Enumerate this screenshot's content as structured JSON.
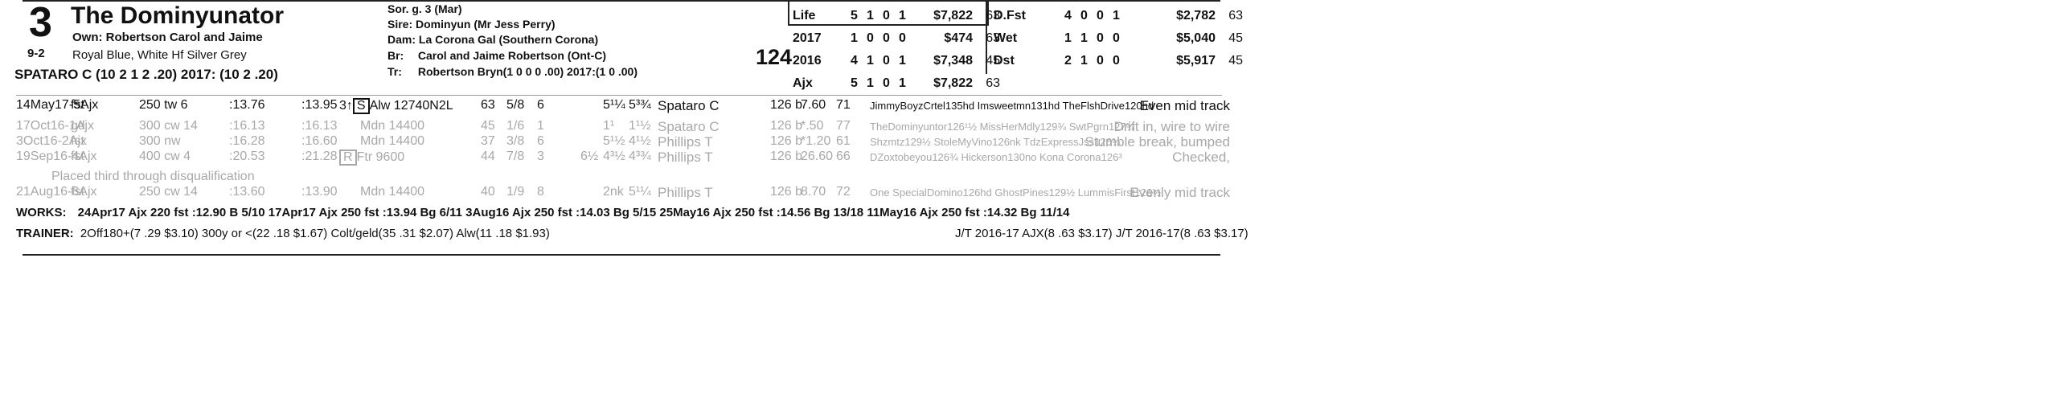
{
  "header": {
    "program_number": "3",
    "horse_name": "The Dominyunator",
    "owner": "Own: Robertson Carol and Jaime",
    "odds": "9-2",
    "silks": "Royal Blue, White Hf Silver Grey",
    "jockey": "SPATARO C (10 2 1 2 .20) 2017: (10 2 .20)"
  },
  "breeding": {
    "sex_age": "Sor. g. 3 (Mar)",
    "sire_label": "Sire:",
    "sire": "Dominyun (Mr Jess Perry)",
    "dam_label": "Dam:",
    "dam": "La Corona Gal (Southern Corona)",
    "breeder_label": "Br:",
    "breeder": "Carol and Jaime Robertson (Ont-C)",
    "trainer_label": "Tr:",
    "trainer": "Robertson Bryn(1 0 0 0 .00)  2017:(1 0 .00)"
  },
  "speed_figure": "124",
  "record_left": [
    {
      "label": "Life",
      "st": "5",
      "w": "1",
      "p": "0",
      "s": "1",
      "earn": "$7,822",
      "fig": "63"
    },
    {
      "label": "2017",
      "st": "1",
      "w": "0",
      "p": "0",
      "s": "0",
      "earn": "$474",
      "fig": "63"
    },
    {
      "label": "2016",
      "st": "4",
      "w": "1",
      "p": "0",
      "s": "1",
      "earn": "$7,348",
      "fig": "45"
    },
    {
      "label": "Ajx",
      "st": "5",
      "w": "1",
      "p": "0",
      "s": "1",
      "earn": "$7,822",
      "fig": "63"
    }
  ],
  "record_right": [
    {
      "label": "D.Fst",
      "st": "4",
      "w": "0",
      "p": "0",
      "s": "1",
      "earn": "$2,782",
      "fig": "63"
    },
    {
      "label": "Wet",
      "st": "1",
      "w": "1",
      "p": "0",
      "s": "0",
      "earn": "$5,040",
      "fig": "45"
    },
    {
      "label": "Dst",
      "st": "2",
      "w": "1",
      "p": "0",
      "s": "0",
      "earn": "$5,917",
      "fig": "45"
    }
  ],
  "races": [
    {
      "date": "14May17-5Ajx",
      "cond": "fst",
      "dist": "250 tw 6",
      "f1": ":13.76",
      "f2": ":13.95",
      "cls_pre": "3↑",
      "cls_box": "S",
      "cls": "Alw 12740N2L",
      "fig": "63",
      "pp": "5/8",
      "st": "6",
      "c1": "",
      "c2": "5¹¼",
      "fin": "5³¾",
      "jockey": "Spataro C",
      "wt": "126 b",
      "odds": "7.60",
      "sp": "71",
      "comp": "JimmyBoyzCrtel135hd Imsweetmn131hd TheFlshDrive120hd",
      "comment": "Even mid track",
      "gray": false
    },
    {
      "date": "17Oct16-1Ajx",
      "cond": "gd",
      "dist": "300 cw 14",
      "f1": ":16.13",
      "f2": ":16.13",
      "cls_pre": "",
      "cls_box": "",
      "cls": "Mdn 14400",
      "fig": "45",
      "pp": "1/6",
      "st": "1",
      "c1": "",
      "c2": "1¹",
      "fin": "1¹½",
      "jockey": "Spataro C",
      "wt": "126 b",
      "odds": "*.50",
      "sp": "77",
      "comp": "TheDominyuntor126¹½ MissHerMdly129¾ SwtPgrn127¾",
      "comment": "Drift in, wire to wire",
      "gray": true
    },
    {
      "date": "3Oct16-2Ajx",
      "cond": "fst",
      "dist": "300 nw",
      "f1": ":16.28",
      "f2": ":16.60",
      "cls_pre": "",
      "cls_box": "",
      "cls": "Mdn 14400",
      "fig": "37",
      "pp": "3/8",
      "st": "6",
      "c1": "",
      "c2": "5¹½",
      "fin": "4¹½",
      "jockey": "Phillips T",
      "wt": "126 b",
      "odds": "*1.20",
      "sp": "61",
      "comp": "Shzmtz129½ StoleMyVino126nk TdzExpressJss126¾",
      "comment": "Stumble break, bumped",
      "gray": true
    },
    {
      "date": "19Sep16-4Ajx",
      "cond": "fst",
      "dist": "400 cw 4",
      "f1": ":20.53",
      "f2": ":21.28",
      "cls_pre": "",
      "cls_box": "R",
      "cls": "Ftr 9600",
      "fig": "44",
      "pp": "7/8",
      "st": "3",
      "c1": "6½",
      "c2": "4³½",
      "fin": "4³¾",
      "jockey": "Phillips T",
      "wt": "126 b",
      "odds": "26.60",
      "sp": "66",
      "comp": "DZoxtobeyou126¾ Hickerson130no Kona Corona126³",
      "comment": "Checked,",
      "gray": true
    },
    {
      "date": "21Aug16-6Ajx",
      "cond": "fst",
      "dist": "250 cw 14",
      "f1": ":13.60",
      "f2": ":13.90",
      "cls_pre": "",
      "cls_box": "",
      "cls": "Mdn 14400",
      "fig": "40",
      "pp": "1/9",
      "st": "8",
      "c1": "",
      "c2": "2nk",
      "fin": "5¹¼",
      "jockey": "Phillips T",
      "wt": "126 b",
      "odds": "8.70",
      "sp": "72",
      "comp": "One SpecialDomino126hd GhostPines129½ LummisFirst126½",
      "comment": "Evenly mid track",
      "gray": true
    }
  ],
  "placement_note": "Placed third through disqualification",
  "works_label": "WORKS:",
  "works": "24Apr17 Ajx 220 fst :12.90 B 5/10   17Apr17 Ajx 250 fst :13.94 Bg 6/11   3Aug16 Ajx 250 fst :14.03 Bg 5/15   25May16 Ajx 250 fst :14.56 Bg 13/18   11May16 Ajx 250 fst :14.32 Bg 11/14",
  "trainer_line_label": "TRAINER:",
  "trainer_line": "2Off180+(7 .29 $3.10)  300y or <(22 .18 $1.67)  Colt/geld(35 .31 $2.07)  Alw(11 .18 $1.93)",
  "jt_line": "J/T 2016-17 AJX(8 .63 $3.17)   J/T 2016-17(8 .63 $3.17)"
}
